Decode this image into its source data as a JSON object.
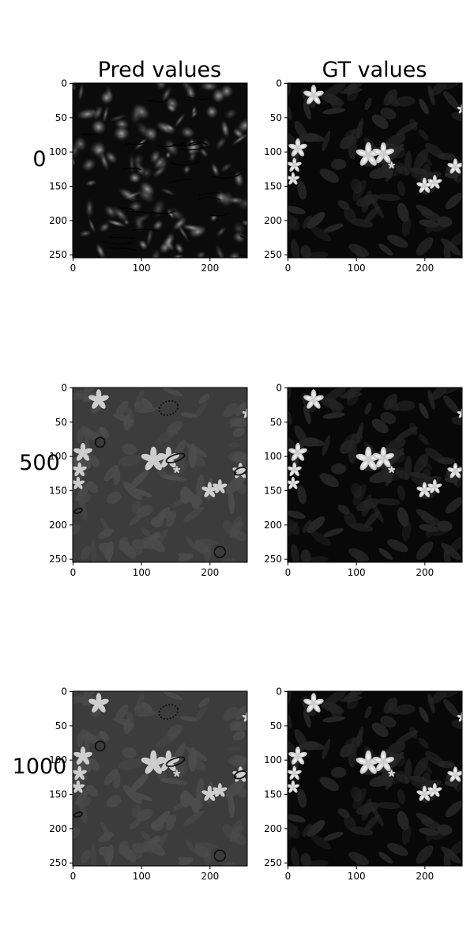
{
  "figure": {
    "column_titles": [
      "Pred values",
      "GT values"
    ],
    "row_labels": [
      "0",
      "500",
      "1000"
    ]
  },
  "chart_data": [
    {
      "type": "heatmap",
      "row_label": "0",
      "column": "Pred values",
      "xlim": [
        0,
        255
      ],
      "ylim": [
        255,
        0
      ],
      "xticks": [
        0,
        100,
        200
      ],
      "yticks": [
        0,
        50,
        100,
        150,
        200,
        250
      ],
      "content": "pred-noisy"
    },
    {
      "type": "heatmap",
      "row_label": "0",
      "column": "GT values",
      "xlim": [
        0,
        255
      ],
      "ylim": [
        255,
        0
      ],
      "xticks": [
        0,
        100,
        200
      ],
      "yticks": [
        0,
        50,
        100,
        150,
        200,
        250
      ],
      "content": "gt"
    },
    {
      "type": "heatmap",
      "row_label": "500",
      "column": "Pred values",
      "xlim": [
        0,
        255
      ],
      "ylim": [
        255,
        0
      ],
      "xticks": [
        0,
        100,
        200
      ],
      "yticks": [
        0,
        50,
        100,
        150,
        200,
        250
      ],
      "content": "pred-gray"
    },
    {
      "type": "heatmap",
      "row_label": "500",
      "column": "GT values",
      "xlim": [
        0,
        255
      ],
      "ylim": [
        255,
        0
      ],
      "xticks": [
        0,
        100,
        200
      ],
      "yticks": [
        0,
        50,
        100,
        150,
        200,
        250
      ],
      "content": "gt"
    },
    {
      "type": "heatmap",
      "row_label": "1000",
      "column": "Pred values",
      "xlim": [
        0,
        255
      ],
      "ylim": [
        255,
        0
      ],
      "xticks": [
        0,
        100,
        200
      ],
      "yticks": [
        0,
        50,
        100,
        150,
        200,
        250
      ],
      "content": "pred-gray"
    },
    {
      "type": "heatmap",
      "row_label": "1000",
      "column": "GT values",
      "xlim": [
        0,
        255
      ],
      "ylim": [
        255,
        0
      ],
      "xticks": [
        0,
        100,
        200
      ],
      "yticks": [
        0,
        50,
        100,
        150,
        200,
        250
      ],
      "content": "gt"
    }
  ],
  "colors": {
    "pred_noisy_bg": "#0b0b0b",
    "pred_gray_bg": "#3c3c3c",
    "gt_bg": "#080808",
    "flower": "#e6e6e6",
    "leaf": "#222222"
  }
}
